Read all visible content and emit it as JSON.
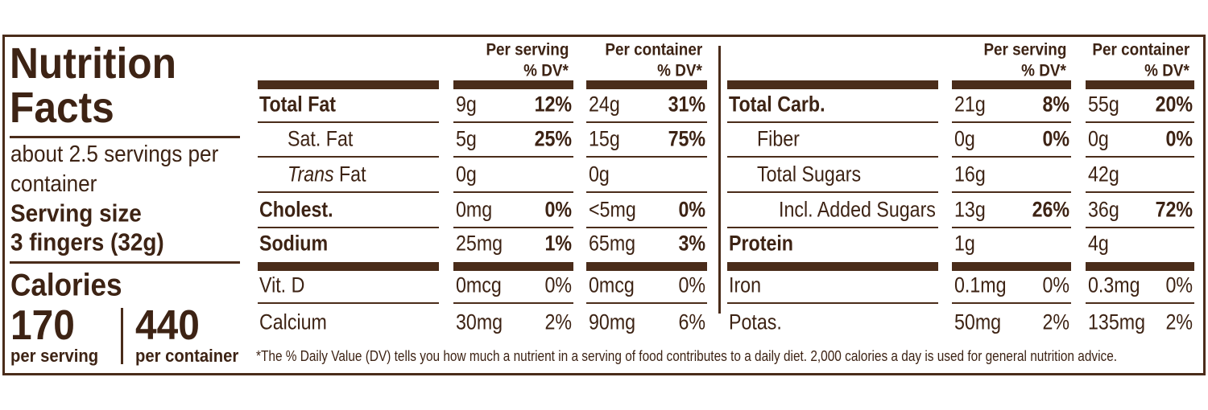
{
  "header": {
    "title": "Nutrition Facts",
    "servings": "about 2.5 servings per container",
    "serving_size_label": "Serving size",
    "serving_size": "3 fingers (32g)"
  },
  "calories": {
    "label": "Calories",
    "per_serving": 170,
    "per_serving_label": "per serving",
    "per_container": 440,
    "per_container_label": "per container"
  },
  "tables": [
    {
      "columns": [
        {
          "title": "Per serving",
          "dv": "% DV*"
        },
        {
          "title": "Per container",
          "dv": "% DV*"
        }
      ],
      "groups": [
        [
          {
            "name": "Total Fat",
            "bold": true,
            "indent": 0,
            "cells": [
              [
                "9g",
                "12%"
              ],
              [
                "24g",
                "31%"
              ]
            ]
          },
          {
            "name": "Sat. Fat",
            "bold": false,
            "indent": 1,
            "cells": [
              [
                "5g",
                "25%"
              ],
              [
                "15g",
                "75%"
              ]
            ]
          },
          {
            "italic_prefix": "Trans",
            "name": "Fat",
            "bold": false,
            "indent": 1,
            "cells": [
              [
                "0g"
              ],
              [
                "0g"
              ]
            ]
          },
          {
            "name": "Cholest.",
            "bold": true,
            "indent": 0,
            "cells": [
              [
                "0mg",
                "0%"
              ],
              [
                "<5mg",
                "0%"
              ]
            ]
          },
          {
            "name": "Sodium",
            "bold": true,
            "indent": 0,
            "cells": [
              [
                "25mg",
                "1%"
              ],
              [
                "65mg",
                "3%"
              ]
            ]
          }
        ],
        [
          {
            "name": "Vit. D",
            "bold": false,
            "indent": 0,
            "cells": [
              [
                "0mcg",
                "0%"
              ],
              [
                "0mcg",
                "0%"
              ]
            ]
          },
          {
            "name": "Calcium",
            "bold": false,
            "indent": 0,
            "cells": [
              [
                "30mg",
                "2%"
              ],
              [
                "90mg",
                "6%"
              ]
            ]
          }
        ]
      ]
    },
    {
      "columns": [
        {
          "title": "Per serving",
          "dv": "% DV*"
        },
        {
          "title": "Per container",
          "dv": "% DV*"
        }
      ],
      "groups": [
        [
          {
            "name": "Total Carb.",
            "bold": true,
            "indent": 0,
            "cells": [
              [
                "21g",
                "8%"
              ],
              [
                "55g",
                "20%"
              ]
            ]
          },
          {
            "name": "Fiber",
            "bold": false,
            "indent": 1,
            "cells": [
              [
                "0g",
                "0%"
              ],
              [
                "0g",
                "0%"
              ]
            ]
          },
          {
            "name": "Total Sugars",
            "bold": false,
            "indent": 1,
            "cells": [
              [
                "16g"
              ],
              [
                "42g"
              ]
            ]
          },
          {
            "name": "Incl. Added Sugars",
            "bold": false,
            "indent": 2,
            "cells": [
              [
                "13g",
                "26%"
              ],
              [
                "36g",
                "72%"
              ]
            ]
          },
          {
            "name": "Protein",
            "bold": true,
            "indent": 0,
            "cells": [
              [
                "1g"
              ],
              [
                "4g"
              ]
            ]
          }
        ],
        [
          {
            "name": "Iron",
            "bold": false,
            "indent": 0,
            "cells": [
              [
                "0.1mg",
                "0%"
              ],
              [
                "0.3mg",
                "0%"
              ]
            ]
          },
          {
            "name": "Potas.",
            "bold": false,
            "indent": 0,
            "cells": [
              [
                "50mg",
                "2%"
              ],
              [
                "135mg",
                "2%"
              ]
            ]
          }
        ]
      ]
    }
  ],
  "footnote": "*The % Daily Value (DV) tells you how much a nutrient in a serving of food contributes to a daily diet. 2,000 calories a day is used for general nutrition advice."
}
